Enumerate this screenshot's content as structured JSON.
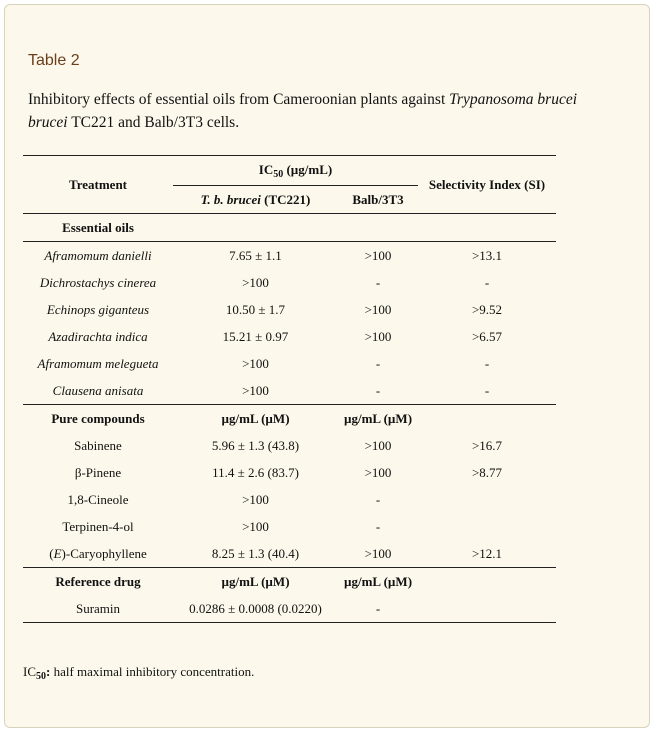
{
  "table_label": "Table 2",
  "caption": {
    "pre": "Inhibitory effects of essential oils from Cameroonian plants against ",
    "italic": "Trypanosoma brucei brucei",
    "post": " TC221 and Balb/3T3 cells."
  },
  "header": {
    "treatment": "Treatment",
    "ic50_prefix": "IC",
    "ic50_sub": "50",
    "ic50_suffix": " (µg/mL)",
    "selectivity": "Selectivity Index (SI)",
    "tbb_italic": "T. b. brucei",
    "tbb_rest": " (TC221)",
    "balb": "Balb/3T3"
  },
  "sections": {
    "essential_oils": "Essential oils",
    "pure_compounds": "Pure compounds",
    "pure_unit_1": "µg/mL (µM)",
    "pure_unit_2": "µg/mL (µM)",
    "reference_drug": "Reference drug",
    "ref_unit_1": "µg/mL (µM)",
    "ref_unit_2": "µg/mL (µM)"
  },
  "essential_oils": [
    {
      "name": "Aframomum danielli",
      "tbb": "7.65 ± 1.1",
      "balb": ">100",
      "si": ">13.1"
    },
    {
      "name": "Dichrostachys cinerea",
      "tbb": ">100",
      "balb": "-",
      "si": "-"
    },
    {
      "name": "Echinops giganteus",
      "tbb": "10.50 ± 1.7",
      "balb": ">100",
      "si": ">9.52"
    },
    {
      "name": "Azadirachta indica",
      "tbb": "15.21 ± 0.97",
      "balb": ">100",
      "si": ">6.57"
    },
    {
      "name": "Aframomum melegueta",
      "tbb": ">100",
      "balb": "-",
      "si": "-"
    },
    {
      "name": "Clausena anisata",
      "tbb": ">100",
      "balb": "-",
      "si": "-"
    }
  ],
  "pure_compounds": [
    {
      "prefix": "",
      "name": "Sabinene",
      "tbb": "5.96 ± 1.3 (43.8)",
      "balb": ">100",
      "si": ">16.7"
    },
    {
      "prefix": "",
      "name": "β-Pinene",
      "tbb": "11.4 ± 2.6 (83.7)",
      "balb": ">100",
      "si": ">8.77"
    },
    {
      "prefix": "",
      "name": "1,8-Cineole",
      "tbb": ">100",
      "balb": "-",
      "si": ""
    },
    {
      "prefix": "",
      "name": "Terpinen-4-ol",
      "tbb": ">100",
      "balb": "-",
      "si": ""
    },
    {
      "prefix": "E",
      "name": "-Caryophyllene",
      "tbb": "8.25 ± 1.3 (40.4)",
      "balb": ">100",
      "si": ">12.1"
    }
  ],
  "reference": [
    {
      "name": "Suramin",
      "tbb": "0.0286 ± 0.0008 (0.0220)",
      "balb": "-",
      "si": ""
    }
  ],
  "footnote": {
    "ic": "IC",
    "sub": "50",
    "colon": ":",
    "text": " half maximal inhibitory concentration."
  }
}
